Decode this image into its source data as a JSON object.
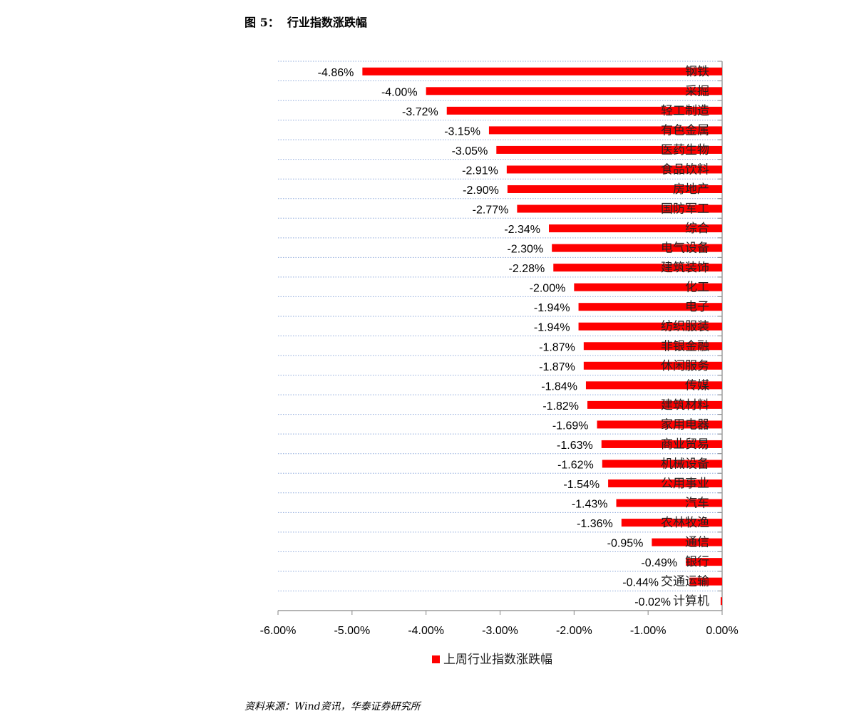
{
  "title": "图 5：  行业指数涨跌幅",
  "source": "资料来源：Wind资讯，华泰证券研究所",
  "chart_data": {
    "type": "bar",
    "orientation": "horizontal",
    "categories": [
      "钢铁",
      "采掘",
      "轻工制造",
      "有色金属",
      "医药生物",
      "食品饮料",
      "房地产",
      "国防军工",
      "综合",
      "电气设备",
      "建筑装饰",
      "化工",
      "电子",
      "纺织服装",
      "非银金融",
      "休闲服务",
      "传媒",
      "建筑材料",
      "家用电器",
      "商业贸易",
      "机械设备",
      "公用事业",
      "汽车",
      "农林牧渔",
      "通信",
      "银行",
      "交通运输",
      "计算机"
    ],
    "series": [
      {
        "name": "上周行业指数涨跌幅",
        "values": [
          -4.86,
          -4.0,
          -3.72,
          -3.15,
          -3.05,
          -2.91,
          -2.9,
          -2.77,
          -2.34,
          -2.3,
          -2.28,
          -2.0,
          -1.94,
          -1.94,
          -1.87,
          -1.87,
          -1.84,
          -1.82,
          -1.69,
          -1.63,
          -1.62,
          -1.54,
          -1.43,
          -1.36,
          -0.95,
          -0.49,
          -0.44,
          -0.02
        ],
        "color": "#FF0000"
      }
    ],
    "data_labels": [
      "-4.86%",
      "-4.00%",
      "-3.72%",
      "-3.15%",
      "-3.05%",
      "-2.91%",
      "-2.90%",
      "-2.77%",
      "-2.34%",
      "-2.30%",
      "-2.28%",
      "-2.00%",
      "-1.94%",
      "-1.94%",
      "-1.87%",
      "-1.87%",
      "-1.84%",
      "-1.82%",
      "-1.69%",
      "-1.63%",
      "-1.62%",
      "-1.54%",
      "-1.43%",
      "-1.36%",
      "-0.95%",
      "-0.49%",
      "-0.44%",
      "-0.02%"
    ],
    "xlim": [
      -6,
      0
    ],
    "x_ticks": [
      "-6.00%",
      "-5.00%",
      "-4.00%",
      "-3.00%",
      "-2.00%",
      "-1.00%",
      "0.00%"
    ],
    "grid": "horizontal dotted",
    "legend_position": "bottom",
    "gridline_color": "#8EA9DB"
  }
}
